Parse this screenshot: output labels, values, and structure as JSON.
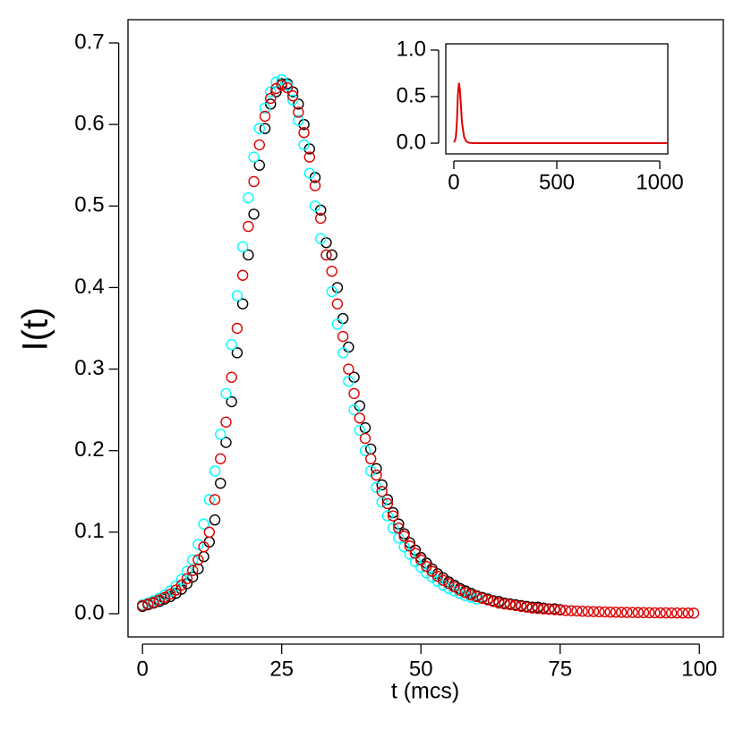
{
  "chart_data": [
    {
      "type": "scatter",
      "xlabel": "t (mcs)",
      "ylabel": "I(t)",
      "xlim": [
        -2.6,
        104.3
      ],
      "ylim": [
        -0.0285,
        0.7285
      ],
      "xticks": [
        0,
        25,
        50,
        75,
        100
      ],
      "yticks": [
        {
          "value": 0,
          "label": "0.0"
        },
        0.1,
        0.2,
        0.3,
        0.4,
        0.5,
        0.6,
        0.7
      ],
      "series": [
        {
          "color": "#000000",
          "x": [
            0,
            1,
            2,
            3,
            4,
            5,
            6,
            7,
            8,
            9,
            10,
            11,
            12,
            13,
            14,
            15,
            16,
            17,
            18,
            19,
            20,
            21,
            22,
            23,
            24,
            25,
            26,
            27,
            28,
            29,
            30,
            31,
            32,
            33,
            34,
            35,
            36,
            37,
            38,
            39,
            40,
            41,
            42,
            43,
            44,
            45,
            46,
            47,
            48,
            49,
            50,
            51,
            52,
            53,
            54,
            55,
            56,
            57,
            58,
            59,
            60,
            61,
            62,
            63,
            64,
            65,
            66,
            67,
            68,
            69,
            70,
            71,
            72,
            73,
            74,
            75
          ],
          "values": [
            0.009,
            0.011,
            0.013,
            0.015,
            0.018,
            0.021,
            0.025,
            0.03,
            0.037,
            0.045,
            0.055,
            0.07,
            0.088,
            0.115,
            0.16,
            0.21,
            0.26,
            0.32,
            0.38,
            0.44,
            0.49,
            0.55,
            0.595,
            0.625,
            0.64,
            0.65,
            0.65,
            0.64,
            0.625,
            0.6,
            0.57,
            0.535,
            0.495,
            0.455,
            0.44,
            0.4,
            0.362,
            0.327,
            0.29,
            0.255,
            0.228,
            0.202,
            0.178,
            0.158,
            0.14,
            0.124,
            0.11,
            0.098,
            0.087,
            0.078,
            0.069,
            0.062,
            0.055,
            0.049,
            0.044,
            0.039,
            0.035,
            0.031,
            0.028,
            0.025,
            0.022,
            0.02,
            0.018,
            0.016,
            0.015,
            0.013,
            0.012,
            0.011,
            0.01,
            0.009,
            0.008,
            0.008,
            0.007,
            0.006,
            0.006,
            0.005
          ]
        },
        {
          "color": "#00ffff",
          "x": [
            0,
            1,
            2,
            3,
            4,
            5,
            6,
            7,
            8,
            9,
            10,
            11,
            12,
            13,
            14,
            15,
            16,
            17,
            18,
            19,
            20,
            21,
            22,
            23,
            24,
            25,
            26,
            27,
            28,
            29,
            30,
            31,
            32,
            33,
            34,
            35,
            36,
            37,
            38,
            39,
            40,
            41,
            42,
            43,
            44,
            45,
            46,
            47,
            48,
            49,
            50,
            51,
            52,
            53,
            54,
            55,
            56,
            57,
            58,
            59,
            60
          ],
          "values": [
            0.011,
            0.013,
            0.016,
            0.019,
            0.023,
            0.028,
            0.034,
            0.042,
            0.052,
            0.066,
            0.085,
            0.11,
            0.14,
            0.175,
            0.22,
            0.27,
            0.33,
            0.39,
            0.45,
            0.51,
            0.56,
            0.595,
            0.62,
            0.64,
            0.652,
            0.655,
            0.648,
            0.63,
            0.605,
            0.575,
            0.54,
            0.5,
            0.46,
            0.44,
            0.395,
            0.355,
            0.32,
            0.285,
            0.25,
            0.225,
            0.2,
            0.175,
            0.155,
            0.137,
            0.12,
            0.105,
            0.093,
            0.082,
            0.073,
            0.064,
            0.057,
            0.05,
            0.045,
            0.04,
            0.035,
            0.031,
            0.028,
            0.025,
            0.022,
            0.02,
            0.018
          ]
        },
        {
          "color": "#dd0000",
          "x": [
            0,
            1,
            2,
            3,
            4,
            5,
            6,
            7,
            8,
            9,
            10,
            11,
            12,
            13,
            14,
            15,
            16,
            17,
            18,
            19,
            20,
            21,
            22,
            23,
            24,
            25,
            26,
            27,
            28,
            29,
            30,
            31,
            32,
            33,
            34,
            35,
            36,
            37,
            38,
            39,
            40,
            41,
            42,
            43,
            44,
            45,
            46,
            47,
            48,
            49,
            50,
            51,
            52,
            53,
            54,
            55,
            56,
            57,
            58,
            59,
            60,
            61,
            62,
            63,
            64,
            65,
            66,
            67,
            68,
            69,
            70,
            71,
            72,
            73,
            74,
            75,
            76,
            77,
            78,
            79,
            80,
            81,
            82,
            83,
            84,
            85,
            86,
            87,
            88,
            89,
            90,
            91,
            92,
            93,
            94,
            95,
            96,
            97,
            98,
            99
          ],
          "values": [
            0.01,
            0.012,
            0.014,
            0.017,
            0.02,
            0.024,
            0.029,
            0.035,
            0.043,
            0.053,
            0.066,
            0.082,
            0.1,
            0.14,
            0.19,
            0.235,
            0.29,
            0.35,
            0.415,
            0.475,
            0.53,
            0.575,
            0.61,
            0.632,
            0.644,
            0.648,
            0.645,
            0.635,
            0.615,
            0.59,
            0.56,
            0.525,
            0.485,
            0.44,
            0.42,
            0.38,
            0.34,
            0.3,
            0.27,
            0.24,
            0.215,
            0.19,
            0.17,
            0.15,
            0.135,
            0.12,
            0.105,
            0.095,
            0.083,
            0.074,
            0.066,
            0.058,
            0.052,
            0.046,
            0.041,
            0.037,
            0.033,
            0.029,
            0.026,
            0.023,
            0.021,
            0.019,
            0.017,
            0.015,
            0.013,
            0.012,
            0.011,
            0.01,
            0.009,
            0.008,
            0.007,
            0.0065,
            0.006,
            0.0055,
            0.005,
            0.0045,
            0.004,
            0.0037,
            0.0034,
            0.0031,
            0.0028,
            0.0026,
            0.0024,
            0.0022,
            0.002,
            0.0019,
            0.0017,
            0.0016,
            0.0015,
            0.0014,
            0.0013,
            0.0012,
            0.0011,
            0.001,
            0.001,
            0.0009,
            0.0009,
            0.0008,
            0.0008,
            0.0007
          ]
        }
      ]
    },
    {
      "type": "line",
      "xlim": [
        -39,
        1039
      ],
      "ylim": [
        -0.115,
        1.067
      ],
      "xticks": [
        0,
        500,
        1000
      ],
      "yticks": [
        {
          "value": 0,
          "label": "0.0"
        },
        0.5,
        {
          "value": 1,
          "label": "1.0"
        }
      ],
      "series": [
        {
          "color": "#dd0000",
          "x": [
            0,
            5,
            10,
            15,
            20,
            25,
            30,
            35,
            40,
            50,
            60,
            70,
            80,
            100,
            150,
            200,
            400,
            600,
            800,
            1000,
            1040
          ],
          "values": [
            0.01,
            0.024,
            0.066,
            0.235,
            0.53,
            0.648,
            0.56,
            0.38,
            0.215,
            0.066,
            0.021,
            0.007,
            0.0028,
            0.0007,
            0,
            0,
            0,
            0,
            0,
            0,
            0
          ]
        }
      ]
    }
  ]
}
